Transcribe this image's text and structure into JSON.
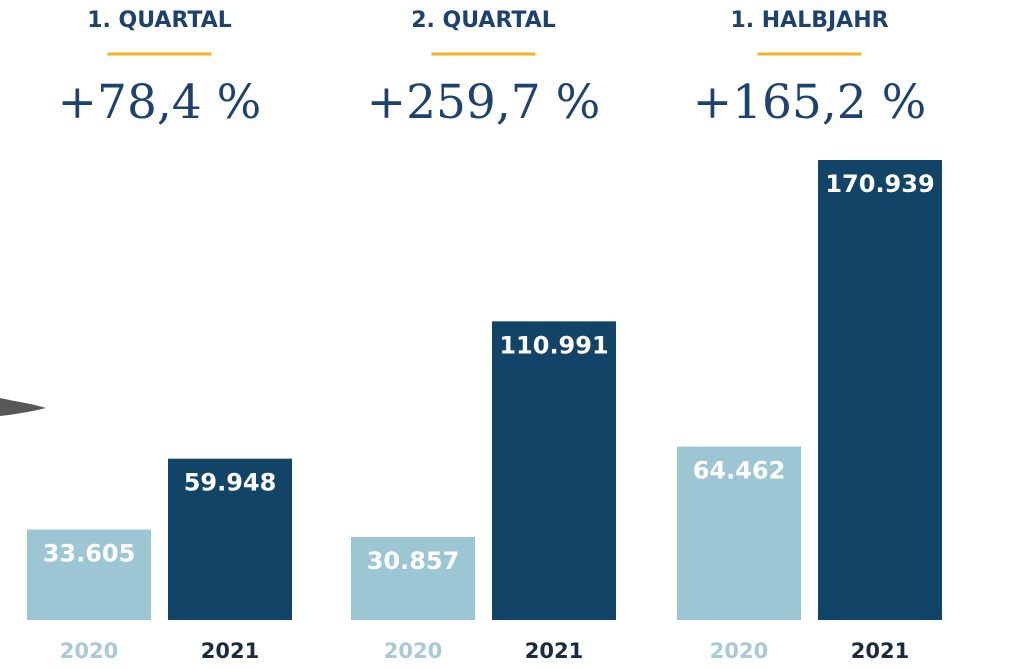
{
  "colors": {
    "bar_2020": "#9dc6d5",
    "bar_2021": "#124467",
    "title_text": "#1d4270",
    "underline": "#f0b324",
    "pct_text": "#1d4270",
    "year_2020_text": "#a9c9d7",
    "year_2021_text": "#1b2b3f",
    "value_text": "#ffffff"
  },
  "chart_data": {
    "type": "bar",
    "categories": [
      "2020",
      "2021"
    ],
    "groups": [
      {
        "title": "1. QUARTAL",
        "change": "+78,4 %",
        "values": [
          33605,
          59948
        ],
        "labels": [
          "33.605",
          "59.948"
        ]
      },
      {
        "title": "2. QUARTAL",
        "change": "+259,7 %",
        "values": [
          30857,
          110991
        ],
        "labels": [
          "30.857",
          "110.991"
        ]
      },
      {
        "title": "1. HALBJAHR",
        "change": "+165,2 %",
        "values": [
          64462,
          170939
        ],
        "labels": [
          "64.462",
          "170.939"
        ]
      }
    ],
    "ylim": [
      0,
      170939
    ],
    "grid": false,
    "legend": "none"
  }
}
